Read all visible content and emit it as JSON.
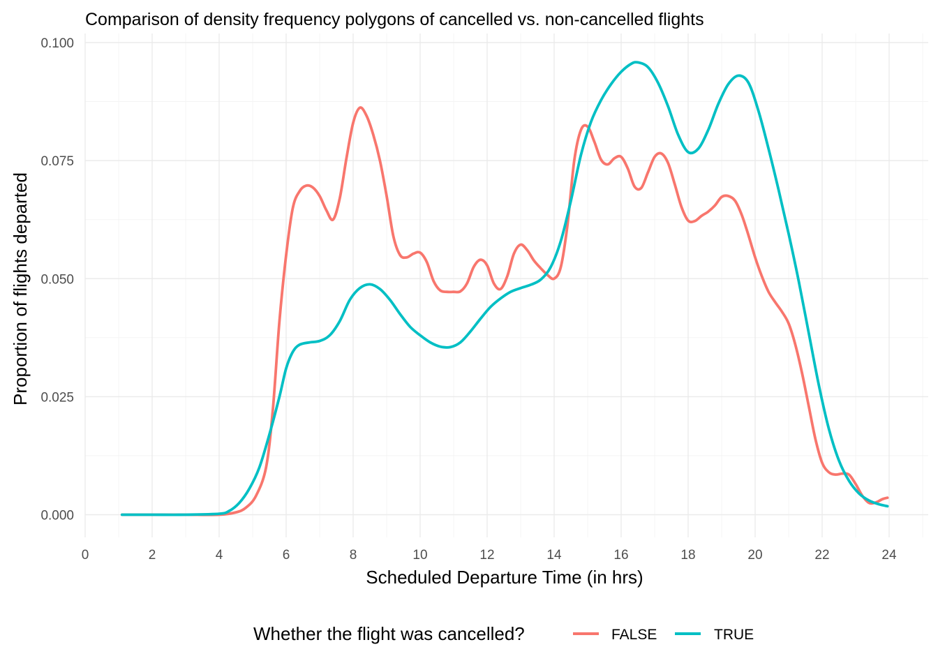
{
  "chart_data": {
    "type": "line",
    "title": "Comparison of density frequency polygons of cancelled vs. non-cancelled flights",
    "xlabel": "Scheduled Departure Time (in hrs)",
    "ylabel": "Proportion of flights departed",
    "xlim": [
      0,
      24
    ],
    "ylim": [
      0,
      0.1
    ],
    "x_ticks": [
      "0",
      "2",
      "4",
      "6",
      "8",
      "10",
      "12",
      "14",
      "16",
      "18",
      "20",
      "22",
      "24"
    ],
    "y_ticks": [
      "0.000",
      "0.025",
      "0.050",
      "0.075",
      "0.100"
    ],
    "grid": true,
    "legend": {
      "title": "Whether the flight was cancelled?",
      "position": "bottom",
      "entries": [
        "FALSE",
        "TRUE"
      ]
    },
    "series": [
      {
        "name": "FALSE",
        "color": "#F8766D",
        "points": [
          [
            1.1,
            0.0
          ],
          [
            2.0,
            0.0
          ],
          [
            3.0,
            0.0
          ],
          [
            4.0,
            0.0
          ],
          [
            4.5,
            0.0005
          ],
          [
            4.8,
            0.0015
          ],
          [
            5.1,
            0.004
          ],
          [
            5.4,
            0.01
          ],
          [
            5.6,
            0.022
          ],
          [
            5.8,
            0.041
          ],
          [
            6.0,
            0.055
          ],
          [
            6.2,
            0.065
          ],
          [
            6.4,
            0.0685
          ],
          [
            6.6,
            0.0697
          ],
          [
            6.8,
            0.0693
          ],
          [
            7.0,
            0.0675
          ],
          [
            7.2,
            0.0645
          ],
          [
            7.4,
            0.0625
          ],
          [
            7.6,
            0.067
          ],
          [
            7.8,
            0.0755
          ],
          [
            8.0,
            0.083
          ],
          [
            8.2,
            0.0862
          ],
          [
            8.4,
            0.0845
          ],
          [
            8.6,
            0.0805
          ],
          [
            8.8,
            0.075
          ],
          [
            9.0,
            0.0675
          ],
          [
            9.2,
            0.059
          ],
          [
            9.4,
            0.055
          ],
          [
            9.6,
            0.0545
          ],
          [
            9.8,
            0.0553
          ],
          [
            10.0,
            0.0555
          ],
          [
            10.2,
            0.0535
          ],
          [
            10.4,
            0.0495
          ],
          [
            10.6,
            0.0475
          ],
          [
            10.8,
            0.0472
          ],
          [
            11.0,
            0.0472
          ],
          [
            11.2,
            0.0473
          ],
          [
            11.4,
            0.049
          ],
          [
            11.6,
            0.0525
          ],
          [
            11.8,
            0.054
          ],
          [
            12.0,
            0.0528
          ],
          [
            12.2,
            0.049
          ],
          [
            12.4,
            0.0478
          ],
          [
            12.6,
            0.0505
          ],
          [
            12.8,
            0.0553
          ],
          [
            13.0,
            0.0572
          ],
          [
            13.2,
            0.056
          ],
          [
            13.4,
            0.0538
          ],
          [
            13.6,
            0.0522
          ],
          [
            13.8,
            0.0508
          ],
          [
            14.0,
            0.05
          ],
          [
            14.2,
            0.0525
          ],
          [
            14.4,
            0.0615
          ],
          [
            14.6,
            0.075
          ],
          [
            14.8,
            0.0815
          ],
          [
            15.0,
            0.0822
          ],
          [
            15.2,
            0.079
          ],
          [
            15.4,
            0.0752
          ],
          [
            15.6,
            0.0742
          ],
          [
            15.8,
            0.0755
          ],
          [
            16.0,
            0.0758
          ],
          [
            16.2,
            0.0733
          ],
          [
            16.4,
            0.0695
          ],
          [
            16.6,
            0.0692
          ],
          [
            16.8,
            0.0725
          ],
          [
            17.0,
            0.0758
          ],
          [
            17.2,
            0.0765
          ],
          [
            17.4,
            0.0745
          ],
          [
            17.6,
            0.07
          ],
          [
            17.8,
            0.0652
          ],
          [
            18.0,
            0.0623
          ],
          [
            18.2,
            0.0622
          ],
          [
            18.4,
            0.0633
          ],
          [
            18.6,
            0.0642
          ],
          [
            18.8,
            0.0655
          ],
          [
            19.0,
            0.0673
          ],
          [
            19.2,
            0.0675
          ],
          [
            19.4,
            0.0665
          ],
          [
            19.6,
            0.0635
          ],
          [
            19.8,
            0.0592
          ],
          [
            20.0,
            0.0545
          ],
          [
            20.2,
            0.0505
          ],
          [
            20.4,
            0.0472
          ],
          [
            20.6,
            0.045
          ],
          [
            20.8,
            0.043
          ],
          [
            21.0,
            0.0405
          ],
          [
            21.2,
            0.036
          ],
          [
            21.4,
            0.03
          ],
          [
            21.6,
            0.023
          ],
          [
            21.8,
            0.016
          ],
          [
            22.0,
            0.011
          ],
          [
            22.2,
            0.009
          ],
          [
            22.4,
            0.0085
          ],
          [
            22.6,
            0.0087
          ],
          [
            22.8,
            0.0085
          ],
          [
            23.0,
            0.0065
          ],
          [
            23.2,
            0.004
          ],
          [
            23.4,
            0.0025
          ],
          [
            23.6,
            0.0026
          ],
          [
            23.8,
            0.0033
          ],
          [
            23.95,
            0.0036
          ]
        ]
      },
      {
        "name": "TRUE",
        "color": "#00BFC4",
        "points": [
          [
            1.1,
            0.0
          ],
          [
            2.0,
            0.0
          ],
          [
            3.0,
            0.0
          ],
          [
            4.0,
            0.0002
          ],
          [
            4.3,
            0.0008
          ],
          [
            4.6,
            0.0025
          ],
          [
            4.9,
            0.0055
          ],
          [
            5.2,
            0.01
          ],
          [
            5.5,
            0.017
          ],
          [
            5.8,
            0.025
          ],
          [
            6.0,
            0.031
          ],
          [
            6.2,
            0.0345
          ],
          [
            6.4,
            0.036
          ],
          [
            6.7,
            0.0365
          ],
          [
            7.0,
            0.0368
          ],
          [
            7.3,
            0.038
          ],
          [
            7.6,
            0.041
          ],
          [
            7.9,
            0.0455
          ],
          [
            8.2,
            0.048
          ],
          [
            8.5,
            0.0488
          ],
          [
            8.8,
            0.0478
          ],
          [
            9.1,
            0.0455
          ],
          [
            9.4,
            0.0425
          ],
          [
            9.7,
            0.0398
          ],
          [
            10.0,
            0.038
          ],
          [
            10.3,
            0.0365
          ],
          [
            10.6,
            0.0356
          ],
          [
            10.9,
            0.0355
          ],
          [
            11.2,
            0.0365
          ],
          [
            11.5,
            0.0388
          ],
          [
            11.8,
            0.0415
          ],
          [
            12.1,
            0.044
          ],
          [
            12.4,
            0.0458
          ],
          [
            12.7,
            0.0472
          ],
          [
            13.0,
            0.048
          ],
          [
            13.3,
            0.0487
          ],
          [
            13.6,
            0.0498
          ],
          [
            13.9,
            0.0525
          ],
          [
            14.2,
            0.058
          ],
          [
            14.5,
            0.0665
          ],
          [
            14.8,
            0.0762
          ],
          [
            15.1,
            0.0832
          ],
          [
            15.4,
            0.0878
          ],
          [
            15.7,
            0.0912
          ],
          [
            16.0,
            0.0938
          ],
          [
            16.3,
            0.0955
          ],
          [
            16.5,
            0.0958
          ],
          [
            16.8,
            0.0948
          ],
          [
            17.1,
            0.0915
          ],
          [
            17.4,
            0.0865
          ],
          [
            17.7,
            0.0805
          ],
          [
            18.0,
            0.0768
          ],
          [
            18.3,
            0.0775
          ],
          [
            18.6,
            0.0815
          ],
          [
            18.9,
            0.087
          ],
          [
            19.2,
            0.0912
          ],
          [
            19.5,
            0.093
          ],
          [
            19.8,
            0.0915
          ],
          [
            20.1,
            0.0855
          ],
          [
            20.4,
            0.0775
          ],
          [
            20.7,
            0.0688
          ],
          [
            21.0,
            0.0595
          ],
          [
            21.3,
            0.0495
          ],
          [
            21.6,
            0.0385
          ],
          [
            21.9,
            0.0275
          ],
          [
            22.2,
            0.0182
          ],
          [
            22.5,
            0.0115
          ],
          [
            22.8,
            0.0072
          ],
          [
            23.1,
            0.0045
          ],
          [
            23.4,
            0.003
          ],
          [
            23.7,
            0.0022
          ],
          [
            23.95,
            0.0018
          ]
        ]
      }
    ]
  }
}
